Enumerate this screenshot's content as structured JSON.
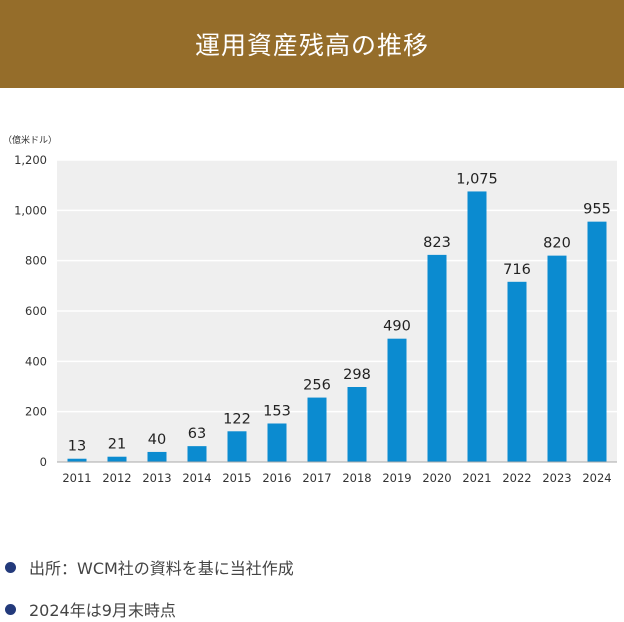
{
  "header": {
    "title": "運用資産残高の推移"
  },
  "chart_data": {
    "type": "bar",
    "title": "運用資産残高の推移",
    "ylabel": "（億米ドル）",
    "xlabel": "",
    "categories": [
      "2011",
      "2012",
      "2013",
      "2014",
      "2015",
      "2016",
      "2017",
      "2018",
      "2019",
      "2020",
      "2021",
      "2022",
      "2023",
      "2024"
    ],
    "values": [
      13,
      21,
      40,
      63,
      122,
      153,
      256,
      298,
      490,
      823,
      1075,
      716,
      820,
      955
    ],
    "value_labels": [
      "13",
      "21",
      "40",
      "63",
      "122",
      "153",
      "256",
      "298",
      "490",
      "823",
      "1,075",
      "716",
      "820",
      "955"
    ],
    "yticks": [
      0,
      200,
      400,
      600,
      800,
      1000,
      1200
    ],
    "ytick_labels": [
      "0",
      "200",
      "400",
      "600",
      "800",
      "1,000",
      "1,200"
    ],
    "ylim": [
      0,
      1200
    ],
    "grid": true,
    "bar_color": "#0b8bd0",
    "grid_color": "#ffffff",
    "plot_background": "#efefef"
  },
  "notes": [
    {
      "text": "出所：WCM社の資料を基に当社作成"
    },
    {
      "text": "2024年は9月末時点"
    }
  ],
  "colors": {
    "header_bg": "#956d2a",
    "bullet": "#233a7b"
  }
}
